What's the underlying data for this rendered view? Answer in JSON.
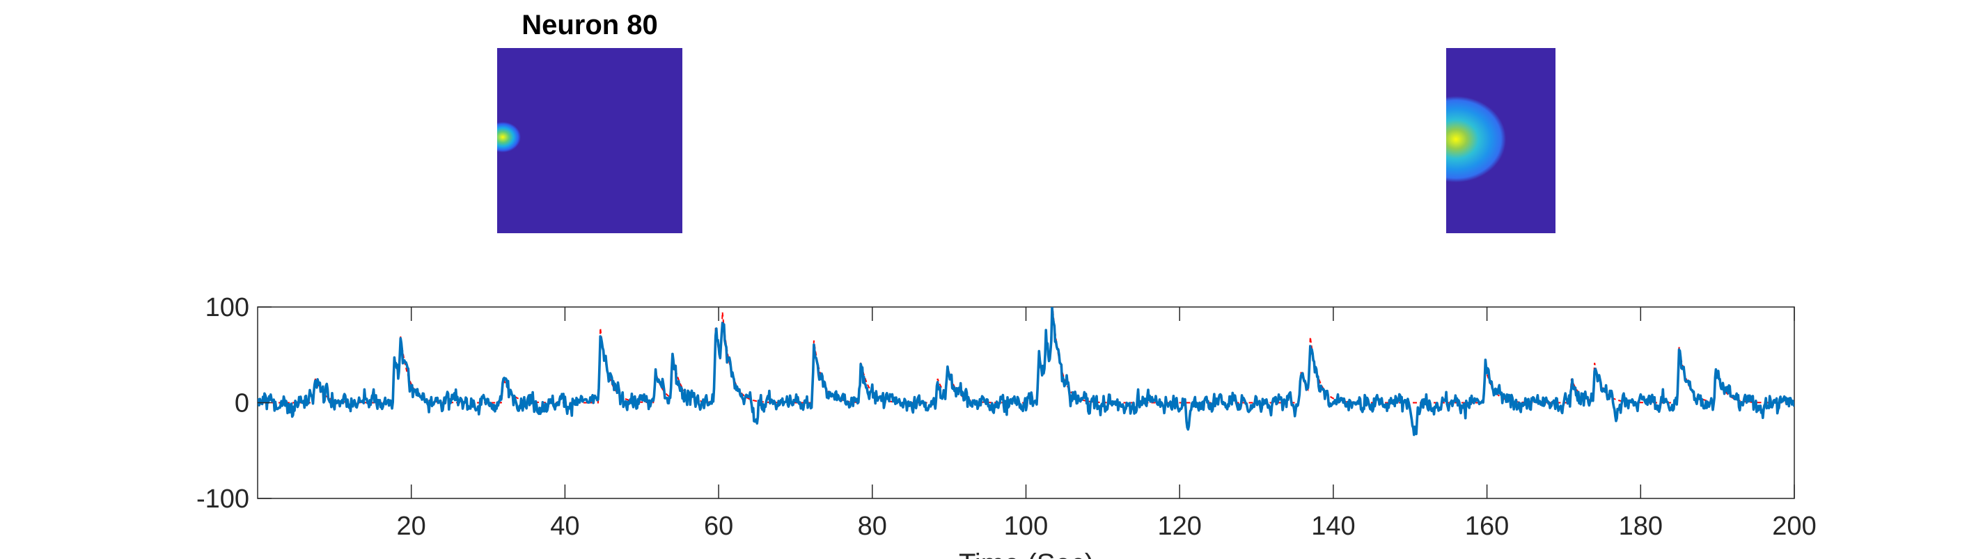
{
  "figure": {
    "title": "Neuron 80"
  },
  "chart_data": {
    "type": "line",
    "title": "Neuron 80",
    "xlabel": "Time (Sec)",
    "ylabel": "",
    "xlim": [
      0,
      200
    ],
    "ylim": [
      -100,
      100
    ],
    "xticks": [
      20,
      40,
      60,
      80,
      100,
      120,
      140,
      160,
      180,
      200
    ],
    "yticks": [
      100,
      0,
      -100
    ],
    "grid": false,
    "series": [
      {
        "color": "#0072BD",
        "style": "noisy fluorescence trace",
        "noise_amplitude": 6,
        "baseline": 0
      },
      {
        "color": "#FF0000",
        "style": "dashed denoised fit",
        "baseline": 0
      }
    ],
    "events": [
      {
        "t": 7.5,
        "amp": 25
      },
      {
        "t": 17.8,
        "amp": 48
      },
      {
        "t": 18.6,
        "amp": 46
      },
      {
        "t": 32.0,
        "amp": 25
      },
      {
        "t": 44.6,
        "amp": 78
      },
      {
        "t": 51.8,
        "amp": 32
      },
      {
        "t": 54.0,
        "amp": 45
      },
      {
        "t": 59.6,
        "amp": 78
      },
      {
        "t": 60.5,
        "amp": 60
      },
      {
        "t": 72.4,
        "amp": 65
      },
      {
        "t": 78.5,
        "amp": 42
      },
      {
        "t": 88.5,
        "amp": 25
      },
      {
        "t": 89.8,
        "amp": 30
      },
      {
        "t": 101.7,
        "amp": 50
      },
      {
        "t": 102.6,
        "amp": 48
      },
      {
        "t": 103.4,
        "amp": 72
      },
      {
        "t": 135.8,
        "amp": 32
      },
      {
        "t": 137.0,
        "amp": 58
      },
      {
        "t": 159.8,
        "amp": 36
      },
      {
        "t": 171.0,
        "amp": 25
      },
      {
        "t": 174.0,
        "amp": 40
      },
      {
        "t": 185.0,
        "amp": 58
      },
      {
        "t": 189.8,
        "amp": 35
      }
    ],
    "dips": [
      {
        "t": 64.8,
        "amp": -28
      },
      {
        "t": 150.6,
        "amp": -30
      },
      {
        "t": 121.0,
        "amp": -22
      },
      {
        "t": 176.8,
        "amp": -22
      }
    ],
    "images": [
      {
        "name": "spatial-footprint-left",
        "background": "#3E26A8",
        "blob_position": "left edge, vertical middle",
        "blob_colors": [
          "#F9FB0E",
          "#5DCA7A",
          "#1AAEE8",
          "#2F62F2"
        ]
      },
      {
        "name": "spatial-footprint-right",
        "background": "#3E26A8",
        "blob_position": "left edge, vertical middle",
        "blob_colors": [
          "#F9FB0E",
          "#93CC4E",
          "#2EBFD6",
          "#1F93EC",
          "#3270F0"
        ]
      }
    ]
  }
}
